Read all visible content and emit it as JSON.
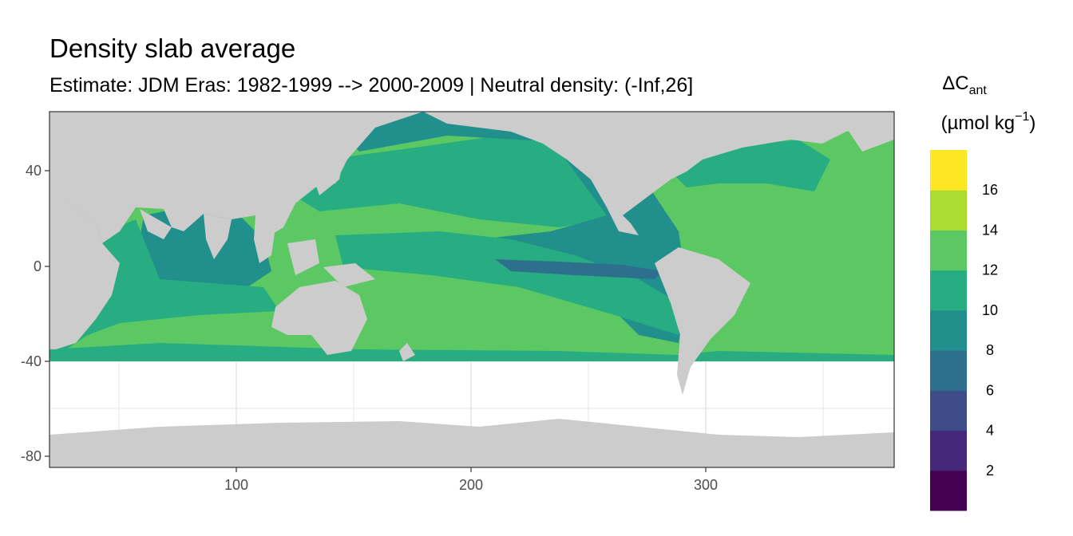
{
  "title": "Density slab average",
  "subtitle": "Estimate: JDM Eras: 1982-1999 --> 2000-2009 | Neutral density: (-Inf,26]",
  "chart_data": {
    "type": "heatmap",
    "x_ticks": [
      100,
      200,
      300
    ],
    "x_range": [
      20,
      380
    ],
    "y_ticks": [
      40,
      0,
      -40,
      -80
    ],
    "y_range": [
      -85,
      65
    ],
    "grid": true,
    "land_color": "#cccccc",
    "legend": {
      "title_main": "ΔC",
      "title_sub": "ant",
      "unit_main": "(µmol kg",
      "unit_sup": "−1",
      "unit_close": ")",
      "placement": "right",
      "labels": [
        "2",
        "4",
        "6",
        "8",
        "10",
        "12",
        "14",
        "16"
      ],
      "bins": [
        {
          "from": 0,
          "to": 2,
          "color": "#440154"
        },
        {
          "from": 2,
          "to": 4,
          "color": "#46287a"
        },
        {
          "from": 4,
          "to": 6,
          "color": "#3e4c8a"
        },
        {
          "from": 6,
          "to": 8,
          "color": "#2e6f8e"
        },
        {
          "from": 8,
          "to": 10,
          "color": "#21908c"
        },
        {
          "from": 10,
          "to": 12,
          "color": "#27ad81"
        },
        {
          "from": 12,
          "to": 14,
          "color": "#5cc863"
        },
        {
          "from": 14,
          "to": 16,
          "color": "#aadc32"
        },
        {
          "from": 16,
          "to": 18,
          "color": "#fde725"
        }
      ]
    }
  }
}
